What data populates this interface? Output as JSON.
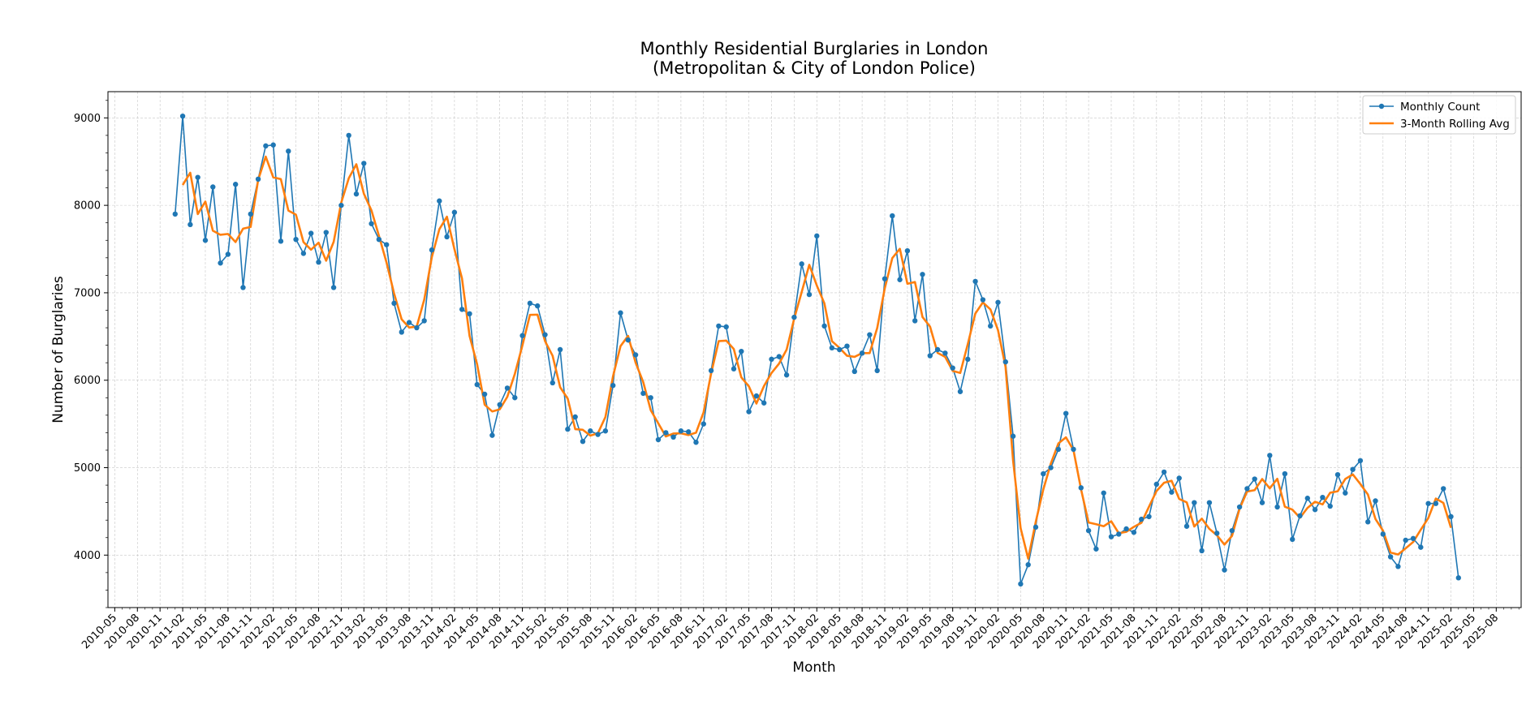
{
  "chart_data": {
    "type": "line",
    "title": "Monthly Residential Burglaries in London",
    "subtitle": "(Metropolitan & City of London Police)",
    "xlabel": "Month",
    "ylabel": "Number of Burglaries",
    "x_start": "2011-01",
    "xlim": [
      "2010-04",
      "2025-11"
    ],
    "ylim": [
      3400,
      9300
    ],
    "y_ticks": [
      4000,
      5000,
      6000,
      7000,
      8000,
      9000
    ],
    "x_tick_labels": [
      "2010-05",
      "2010-08",
      "2010-11",
      "2011-02",
      "2011-05",
      "2011-08",
      "2011-11",
      "2012-02",
      "2012-05",
      "2012-08",
      "2012-11",
      "2013-02",
      "2013-05",
      "2013-08",
      "2013-11",
      "2014-02",
      "2014-05",
      "2014-08",
      "2014-11",
      "2015-02",
      "2015-05",
      "2015-08",
      "2015-11",
      "2016-02",
      "2016-05",
      "2016-08",
      "2016-11",
      "2017-02",
      "2017-05",
      "2017-08",
      "2017-11",
      "2018-02",
      "2018-05",
      "2018-08",
      "2018-11",
      "2019-02",
      "2019-05",
      "2019-08",
      "2019-11",
      "2020-02",
      "2020-05",
      "2020-08",
      "2020-11",
      "2021-02",
      "2021-05",
      "2021-08",
      "2021-11",
      "2022-02",
      "2022-05",
      "2022-08",
      "2022-11",
      "2023-02",
      "2023-05",
      "2023-08",
      "2023-11",
      "2024-02",
      "2024-05",
      "2024-08",
      "2024-11",
      "2025-02",
      "2025-05",
      "2025-08"
    ],
    "grid": true,
    "legend_position": "top-right",
    "series": [
      {
        "name": "Monthly Count",
        "color": "#1f77b4",
        "marker": "circle",
        "values": [
          7900,
          9020,
          7780,
          8320,
          7600,
          8210,
          7340,
          7440,
          8240,
          7060,
          7900,
          8300,
          8680,
          8690,
          7590,
          8620,
          7610,
          7450,
          7680,
          7350,
          7690,
          7060,
          8000,
          8800,
          8130,
          8480,
          7790,
          7610,
          7550,
          6880,
          6550,
          6660,
          6600,
          6680,
          7490,
          8050,
          7640,
          7920,
          6810,
          6760,
          5950,
          5840,
          5370,
          5720,
          5910,
          5800,
          6510,
          6880,
          6850,
          6520,
          5970,
          6350,
          5440,
          5580,
          5300,
          5420,
          5380,
          5420,
          5940,
          6770,
          6460,
          6290,
          5850,
          5800,
          5320,
          5400,
          5350,
          5420,
          5410,
          5290,
          5500,
          6110,
          6620,
          6610,
          6130,
          6330,
          5640,
          5820,
          5740,
          6240,
          6270,
          6060,
          6720,
          7330,
          6980,
          7650,
          6620,
          6370,
          6350,
          6390,
          6100,
          6310,
          6520,
          6110,
          7160,
          7880,
          7150,
          7480,
          6680,
          7210,
          6280,
          6350,
          6310,
          6140,
          5870,
          6240,
          7130,
          6920,
          6620,
          6890,
          6210,
          5360,
          3670,
          3890,
          4320,
          4930,
          5000,
          5210,
          5620,
          5210,
          4770,
          4280,
          4070,
          4710,
          4210,
          4240,
          4300,
          4260,
          4410,
          4440,
          4810,
          4950,
          4720,
          4880,
          4330,
          4600,
          4050,
          4600,
          4250,
          3830,
          4280,
          4550,
          4760,
          4870,
          4600,
          5140,
          4550,
          4930,
          4180,
          4450,
          4650,
          4520,
          4660,
          4560,
          4920,
          4710,
          4980,
          5080,
          4380,
          4620,
          4240,
          3980,
          3870,
          4170,
          4190,
          4090,
          4590,
          4590,
          4760,
          4440,
          3740
        ]
      },
      {
        "name": "3-Month Rolling Avg",
        "color": "#ff7f0e",
        "start_offset": 1,
        "values": [
          8233,
          8373,
          7900,
          8043,
          7710,
          7663,
          7673,
          7580,
          7733,
          7753,
          8293,
          8557,
          8320,
          8300,
          7940,
          7893,
          7580,
          7493,
          7573,
          7367,
          7583,
          8030,
          8310,
          8470,
          8133,
          7943,
          7650,
          7347,
          6993,
          6697,
          6603,
          6613,
          6923,
          7407,
          7727,
          7870,
          7497,
          7163,
          6507,
          6183,
          5720,
          5643,
          5667,
          5810,
          6073,
          6397,
          6747,
          6750,
          6447,
          6280,
          5920,
          5790,
          5440,
          5433,
          5367,
          5393,
          5580,
          6043,
          6390,
          6507,
          6200,
          5980,
          5657,
          5507,
          5357,
          5390,
          5393,
          5373,
          5400,
          5633,
          6077,
          6447,
          6453,
          6357,
          6033,
          5930,
          5733,
          5933,
          6083,
          6190,
          6350,
          6703,
          7010,
          7320,
          7083,
          6880,
          6447,
          6370,
          6280,
          6267,
          6310,
          6310,
          6597,
          7050,
          7397,
          7503,
          7103,
          7123,
          6723,
          6613,
          6313,
          6267,
          6107,
          6083,
          6413,
          6763,
          6890,
          6810,
          6573,
          6153,
          5080,
          4307,
          3960,
          4380,
          4750,
          5047,
          5277,
          5347,
          5200,
          4753,
          4373,
          4353,
          4330,
          4387,
          4250,
          4267,
          4323,
          4370,
          4553,
          4733,
          4827,
          4850,
          4643,
          4603,
          4327,
          4417,
          4300,
          4227,
          4120,
          4220,
          4530,
          4727,
          4743,
          4870,
          4763,
          4873,
          4553,
          4520,
          4427,
          4540,
          4610,
          4580,
          4713,
          4730,
          4870,
          4923,
          4813,
          4693,
          4413,
          4280,
          4030,
          4007,
          4077,
          4150,
          4290,
          4423,
          4647,
          4597,
          4313
        ]
      }
    ]
  }
}
